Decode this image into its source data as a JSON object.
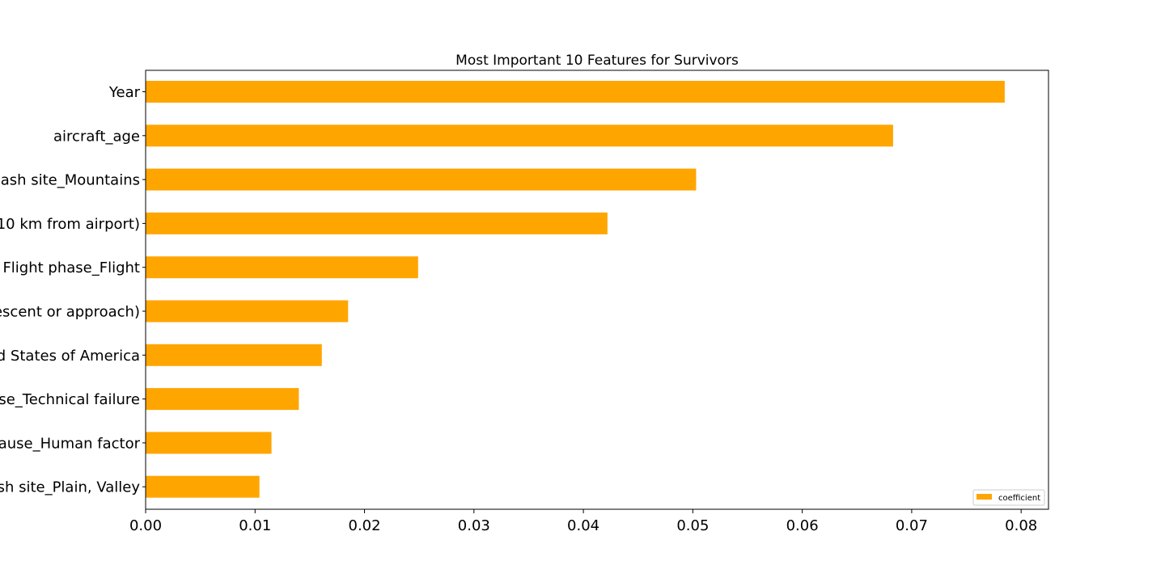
{
  "chart_data": {
    "type": "bar",
    "orientation": "horizontal",
    "title": "Most Important 10 Features for Survivors",
    "xlabel": "",
    "ylabel": "",
    "categories": [
      "Year",
      "aircraft_age",
      "ash site_Mountains",
      "10 km from airport)",
      "Flight phase_Flight",
      "escent or approach)",
      "d States of America",
      "se_Technical failure",
      "ause_Human factor",
      "sh site_Plain, Valley"
    ],
    "series": [
      {
        "name": "coefficient",
        "color": "#FFA500",
        "values": [
          0.0785,
          0.0683,
          0.0503,
          0.0422,
          0.0249,
          0.0185,
          0.0161,
          0.014,
          0.0115,
          0.0104
        ]
      }
    ],
    "xlim": [
      0,
      0.0825
    ],
    "xticks": [
      0.0,
      0.01,
      0.02,
      0.03,
      0.04,
      0.05,
      0.06,
      0.07,
      0.08
    ],
    "xtick_labels": [
      "0.00",
      "0.01",
      "0.02",
      "0.03",
      "0.04",
      "0.05",
      "0.06",
      "0.07",
      "0.08"
    ],
    "grid": false,
    "legend": {
      "position": "bottom-right",
      "entries": [
        "coefficient"
      ]
    }
  }
}
